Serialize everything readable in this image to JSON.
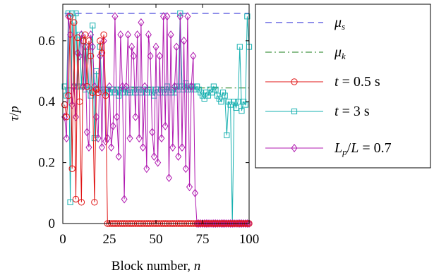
{
  "chart_data": {
    "type": "line",
    "xlabel": "Block number, n",
    "ylabel": "τ/p",
    "xlim": [
      0,
      100
    ],
    "ylim": [
      0,
      0.72
    ],
    "xticks": [
      0,
      25,
      50,
      75,
      100
    ],
    "yticks": [
      0,
      0.2,
      0.4,
      0.6
    ],
    "ytick_labels": [
      "0",
      "0.2",
      "0.4",
      "0.6"
    ],
    "grid": false,
    "legend_position": "outside-right",
    "legend": [
      {
        "key": "mu_s",
        "text": "μs",
        "style": "dashed",
        "color": "#1f1fd6"
      },
      {
        "key": "mu_k",
        "text": "μk",
        "style": "dashdot",
        "color": "#1a7d1a"
      },
      {
        "key": "t05",
        "text": "t = 0.5 s",
        "style": "circle",
        "color": "#e01515"
      },
      {
        "key": "t3",
        "text": "t = 3 s",
        "style": "square",
        "color": "#17b0b0"
      },
      {
        "key": "lp",
        "text": "Lp/L = 0.7",
        "style": "diamond",
        "color": "#b01ab0"
      }
    ],
    "reference_lines": [
      {
        "name": "μs",
        "y": 0.69,
        "color": "#1f1fd6",
        "style": "dashed"
      },
      {
        "name": "μk",
        "y": 0.445,
        "color": "#1a7d1a",
        "style": "dashdot"
      }
    ],
    "series": [
      {
        "name": "t = 0.5 s",
        "color": "#e01515",
        "marker": "circle",
        "x": [
          1,
          2,
          3,
          4,
          5,
          6,
          7,
          8,
          9,
          10,
          11,
          12,
          13,
          14,
          15,
          16,
          17,
          18,
          19,
          20,
          21,
          22,
          23,
          24,
          25,
          26,
          27,
          28,
          29,
          30,
          31,
          32,
          33,
          34,
          35,
          36,
          37,
          38,
          39,
          40,
          41,
          42,
          43,
          44,
          45,
          46,
          47,
          48,
          49,
          50,
          51,
          52,
          53,
          54,
          55,
          56,
          57,
          58,
          59,
          60,
          61,
          62,
          63,
          64,
          65,
          66,
          67,
          68,
          69,
          70,
          71,
          72,
          73,
          74,
          75,
          76,
          77,
          78,
          79,
          80,
          81,
          82,
          83,
          84,
          85,
          86,
          87,
          88,
          89,
          90,
          91,
          92,
          93,
          94,
          95,
          96,
          97,
          98,
          99,
          100
        ],
        "y": [
          0.39,
          0.35,
          0.42,
          0.68,
          0.18,
          0.66,
          0.08,
          0.61,
          0.4,
          0.07,
          0.6,
          0.62,
          0.45,
          0.6,
          0.55,
          0.43,
          0.07,
          0.44,
          0.43,
          0.6,
          0.56,
          0.62,
          0.42,
          0,
          0,
          0,
          0,
          0,
          0,
          0,
          0,
          0,
          0,
          0,
          0,
          0,
          0,
          0,
          0,
          0,
          0,
          0,
          0,
          0,
          0,
          0,
          0,
          0,
          0,
          0,
          0,
          0,
          0,
          0,
          0,
          0,
          0,
          0,
          0,
          0,
          0,
          0,
          0,
          0,
          0,
          0,
          0,
          0,
          0,
          0,
          0,
          0,
          0,
          0,
          0,
          0,
          0,
          0,
          0,
          0,
          0,
          0,
          0,
          0,
          0,
          0,
          0,
          0,
          0,
          0,
          0,
          0,
          0,
          0,
          0,
          0,
          0,
          0,
          0,
          0
        ]
      },
      {
        "name": "t = 3 s",
        "color": "#17b0b0",
        "marker": "square",
        "x": [
          1,
          2,
          3,
          4,
          5,
          6,
          7,
          8,
          9,
          10,
          11,
          12,
          13,
          14,
          15,
          16,
          17,
          18,
          19,
          20,
          21,
          22,
          23,
          24,
          25,
          26,
          27,
          28,
          29,
          30,
          31,
          32,
          33,
          34,
          35,
          36,
          37,
          38,
          39,
          40,
          41,
          42,
          43,
          44,
          45,
          46,
          47,
          48,
          49,
          50,
          51,
          52,
          53,
          54,
          55,
          56,
          57,
          58,
          59,
          60,
          61,
          62,
          63,
          64,
          65,
          66,
          67,
          68,
          69,
          70,
          71,
          72,
          73,
          74,
          75,
          76,
          77,
          78,
          79,
          80,
          81,
          82,
          83,
          84,
          85,
          86,
          87,
          88,
          89,
          90,
          91,
          92,
          93,
          94,
          95,
          96,
          97,
          98,
          99,
          100
        ],
        "y": [
          0.45,
          0.42,
          0.69,
          0.07,
          0.69,
          0.45,
          0.69,
          0.45,
          0.62,
          0.45,
          0.6,
          0.44,
          0.58,
          0.44,
          0.42,
          0.65,
          0.28,
          0.5,
          0.44,
          0.58,
          0.44,
          0.43,
          0.44,
          0.44,
          0.43,
          0.44,
          0.44,
          0.43,
          0.44,
          0.42,
          0.44,
          0.43,
          0.44,
          0.44,
          0.43,
          0.43,
          0.44,
          0.44,
          0.43,
          0.44,
          0.44,
          0.43,
          0.44,
          0.44,
          0.43,
          0.44,
          0.44,
          0.43,
          0.42,
          0.44,
          0.44,
          0.43,
          0.44,
          0.44,
          0.43,
          0.45,
          0.44,
          0.43,
          0.44,
          0.43,
          0.45,
          0.44,
          0.69,
          0.45,
          0.44,
          0.46,
          0.44,
          0.45,
          0.44,
          0.45,
          0.44,
          0.45,
          0.44,
          0.43,
          0.42,
          0.41,
          0.43,
          0.42,
          0.44,
          0.43,
          0.45,
          0.44,
          0.42,
          0.41,
          0.4,
          0.43,
          0.42,
          0.29,
          0.4,
          0.39,
          0.0,
          0.4,
          0.38,
          0.4,
          0.58,
          0.37,
          0.4,
          0.39,
          0.68,
          0.58
        ]
      },
      {
        "name": "Lp/L = 0.7",
        "color": "#b01ab0",
        "marker": "diamond",
        "x": [
          1,
          2,
          3,
          4,
          5,
          6,
          7,
          8,
          9,
          10,
          11,
          12,
          13,
          14,
          15,
          16,
          17,
          18,
          19,
          20,
          21,
          22,
          23,
          24,
          25,
          26,
          27,
          28,
          29,
          30,
          31,
          32,
          33,
          34,
          35,
          36,
          37,
          38,
          39,
          40,
          41,
          42,
          43,
          44,
          45,
          46,
          47,
          48,
          49,
          50,
          51,
          52,
          53,
          54,
          55,
          56,
          57,
          58,
          59,
          60,
          61,
          62,
          63,
          64,
          65,
          66,
          67,
          68,
          69,
          70,
          71,
          72,
          73,
          74,
          75,
          76,
          77,
          78,
          79,
          80,
          81,
          82,
          83,
          84,
          85,
          86,
          87,
          88,
          89,
          90,
          91,
          92,
          93,
          94,
          95,
          96,
          97,
          98,
          99,
          100
        ],
        "y": [
          0.35,
          0.28,
          0.68,
          0.62,
          0.39,
          0.45,
          0.35,
          0.56,
          0.55,
          0.62,
          0.45,
          0.58,
          0.3,
          0.25,
          0.62,
          0.58,
          0.45,
          0.35,
          0.28,
          0.55,
          0.25,
          0.6,
          0.27,
          0.28,
          0.45,
          0.25,
          0.32,
          0.68,
          0.35,
          0.22,
          0.62,
          0.45,
          0.08,
          0.45,
          0.62,
          0.28,
          0.58,
          0.55,
          0.35,
          0.62,
          0.28,
          0.66,
          0.25,
          0.45,
          0.18,
          0.62,
          0.55,
          0.3,
          0.22,
          0.58,
          0.2,
          0.55,
          0.28,
          0.68,
          0.32,
          0.68,
          0.15,
          0.62,
          0.25,
          0.45,
          0.58,
          0.22,
          0.68,
          0.25,
          0.6,
          0.18,
          0.68,
          0.12,
          0.45,
          0.55,
          0.1,
          0,
          0,
          0,
          0,
          0,
          0,
          0,
          0,
          0,
          0,
          0,
          0,
          0,
          0,
          0,
          0,
          0,
          0,
          0,
          0,
          0,
          0,
          0,
          0,
          0,
          0,
          0,
          0,
          0
        ]
      }
    ]
  }
}
